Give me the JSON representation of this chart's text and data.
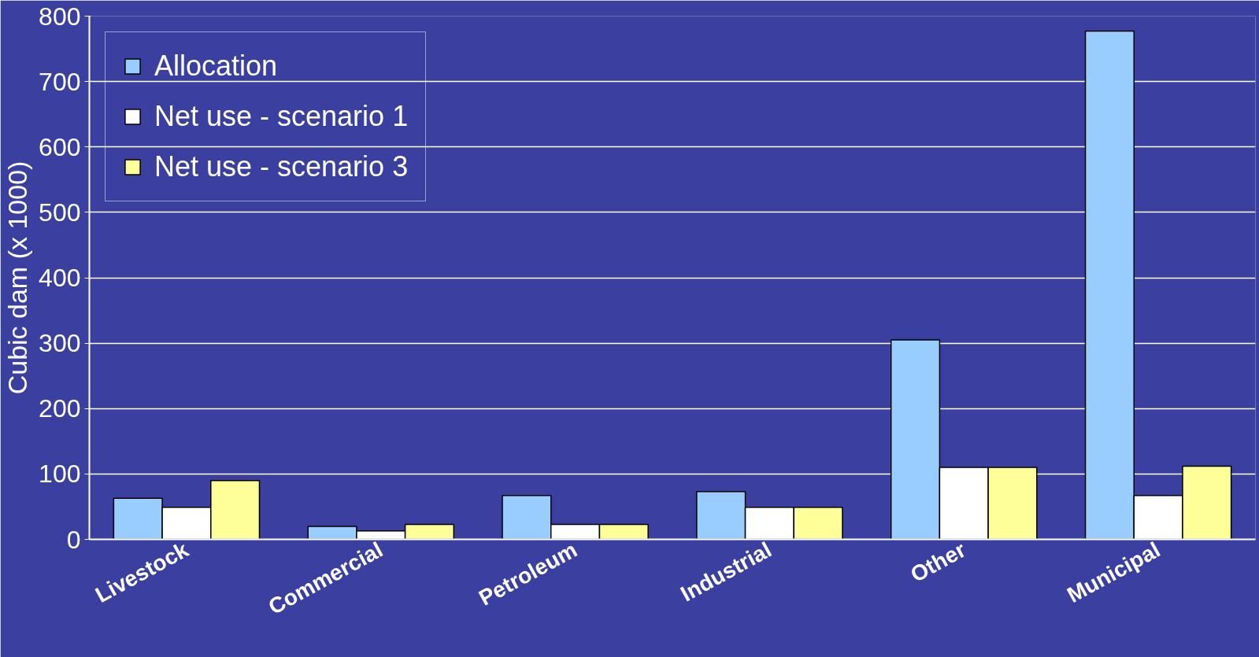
{
  "chart_data": {
    "type": "bar",
    "ylabel": "Cubic dam (x 1000)",
    "categories": [
      "Livestock",
      "Commercial",
      "Petroleum",
      "Industrial",
      "Other",
      "Municipal"
    ],
    "series": [
      {
        "name": "Allocation",
        "color": "#99ccff",
        "values": [
          63,
          20,
          67,
          73,
          305,
          777
        ]
      },
      {
        "name": "Net use - scenario 1",
        "color": "#ffffff",
        "values": [
          49,
          13,
          23,
          49,
          110,
          67
        ]
      },
      {
        "name": "Net use - scenario 3",
        "color": "#ffff99",
        "values": [
          90,
          23,
          23,
          49,
          110,
          112
        ]
      }
    ],
    "ylim": [
      0,
      800
    ],
    "yticks": [
      0,
      100,
      200,
      300,
      400,
      500,
      600,
      700,
      800
    ],
    "grid": "y",
    "legend": "top left"
  }
}
